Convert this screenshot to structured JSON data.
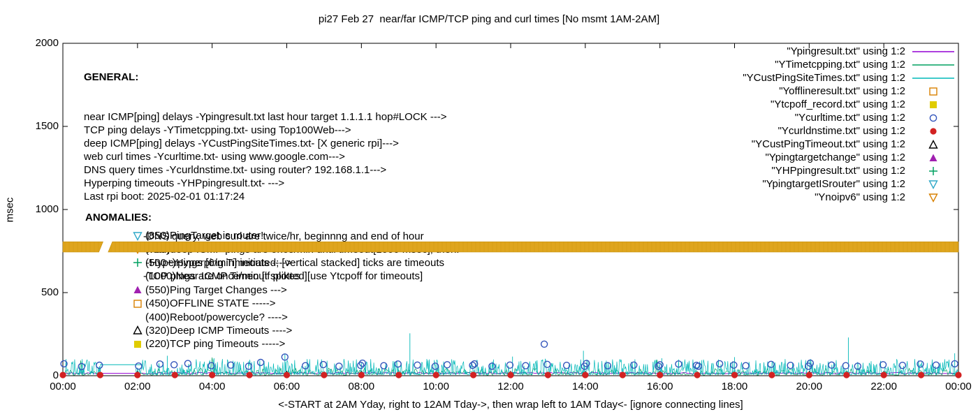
{
  "title": "pi27 Feb 27  near/far ICMP/TCP ping and curl times [No msmt 1AM-2AM]",
  "ylabel": "msec",
  "xlabel": "<-START at 2AM Yday, right to 12AM Tday->, then wrap left to 1AM Tday<- [ignore connecting lines]",
  "general": {
    "heading": "GENERAL:",
    "lines": [
      "near ICMP[ping] delays -Ypingresult.txt last hour target 1.1.1.1 hop#LOCK --->",
      "TCP ping delays -YTimetcpping.txt- using Top100Web--->",
      "deep ICMP[ping] delays -YCustPingSiteTimes.txt- [X generic rpi]--->",
      "web curl times -Ycurltime.txt- using www.google.com--->",
      "DNS query times -Ycurldnstime.txt- using router? 192.168.1.1--->",
      "Hyperping timeouts -YHPpingresult.txt- --->",
      "Last rpi boot: 2025-02-01 01:17:24"
    ],
    "notes": [
      "-DNS query, web curl are twice/hr, beginnng and end of hour",
      "-near,deep ICMP pings are once/min until timeout[1000 msec], then:",
      " -Hyperpings [6/min] initiated; [vertical stacked] ticks are timeouts",
      "-TCP pings are once/min [if plotted][use Ytcpoff for timeouts]"
    ]
  },
  "anomalies": {
    "heading": "ANOMALIES:",
    "items": [
      {
        "marker": "tri-down-open",
        "color": "#2FA8C8",
        "label": "(850)PingTarget is router!"
      },
      {
        "marker": "tri-down-open",
        "color": "#D88000",
        "label": "(735)"
      },
      {
        "marker": "plus",
        "color": "#00A060",
        "label": "(500+)Hyperping Timeouts ---->"
      },
      {
        "marker": "none",
        "color": "#000000",
        "label": "(1000)Near ICMP Timeout spikes"
      },
      {
        "marker": "tri-up-filled",
        "color": "#A020B0",
        "label": "(550)Ping Target Changes --->"
      },
      {
        "marker": "square-open",
        "color": "#D88000",
        "label": "(450)OFFLINE STATE ----->"
      },
      {
        "marker": "none",
        "color": "#000000",
        "label": "(400)Reboot/powercycle? ---->"
      },
      {
        "marker": "tri-up-open",
        "color": "#000000",
        "label": "(320)Deep ICMP Timeouts ---->"
      },
      {
        "marker": "square-filled",
        "color": "#E0CC00",
        "label": "(220)TCP ping Timeouts ----->"
      }
    ]
  },
  "legend": {
    "items": [
      {
        "label": "\"Ypingresult.txt\" using 1:2",
        "marker": "line",
        "color": "#9400D3"
      },
      {
        "label": "\"YTimetcpping.txt\" using 1:2",
        "marker": "line",
        "color": "#00A060"
      },
      {
        "label": "\"YCustPingSiteTimes.txt\" using 1:2",
        "marker": "line",
        "color": "#00B8B8"
      },
      {
        "label": "\"Yofflineresult.txt\" using 1:2",
        "marker": "square-open",
        "color": "#D88000"
      },
      {
        "label": "\"Ytcpoff_record.txt\" using 1:2",
        "marker": "square-filled",
        "color": "#E0CC00"
      },
      {
        "label": "\"Ycurltime.txt\" using 1:2",
        "marker": "circle-open",
        "color": "#3355BB"
      },
      {
        "label": "\"Ycurldnstime.txt\" using 1:2",
        "marker": "circle-filled",
        "color": "#D22222"
      },
      {
        "label": "\"YCustPingTimeout.txt\" using 1:2",
        "marker": "tri-up-open",
        "color": "#000000"
      },
      {
        "label": "\"Ypingtargetchange\" using 1:2",
        "marker": "tri-up-filled",
        "color": "#A020B0"
      },
      {
        "label": "\"YHPpingresult.txt\" using 1:2",
        "marker": "plus",
        "color": "#00A060"
      },
      {
        "label": "\"YpingtargetISrouter\" using 1:2",
        "marker": "tri-down-open",
        "color": "#2FA8C8"
      },
      {
        "label": "\"Ynoipv6\" using 1:2",
        "marker": "tri-down-open",
        "color": "#D88000"
      }
    ]
  },
  "chart_data": {
    "type": "line",
    "title": "pi27 Feb 27  near/far ICMP/TCP ping and curl times [No msmt 1AM-2AM]",
    "xlabel": "<-START at 2AM Yday, right to 12AM Tday->, then wrap left to 1AM Tday<- [ignore connecting lines]",
    "ylabel": "msec",
    "xlim": [
      0,
      24
    ],
    "ylim": [
      0,
      2000
    ],
    "yticks": [
      0,
      500,
      1000,
      1500,
      2000
    ],
    "xticks": {
      "positions": [
        0,
        2,
        4,
        6,
        8,
        10,
        12,
        14,
        16,
        18,
        20,
        22,
        24
      ],
      "labels": [
        "00:00",
        "02:00",
        "04:00",
        "06:00",
        "08:00",
        "10:00",
        "12:00",
        "14:00",
        "16:00",
        "18:00",
        "20:00",
        "22:00",
        "00:00"
      ]
    },
    "grid": false,
    "legend_position": "top-right",
    "seed": 27,
    "no_measurement_gap_hours": [
      1.03,
      1.95
    ],
    "series": [
      {
        "id": "Ypingresult-near-icmp",
        "type": "noise-line",
        "color": "#9400D3",
        "base": 11,
        "amp": 9,
        "pow": 1,
        "step": 0.06,
        "width": 0.9,
        "gap": [
          1.03,
          1.95
        ]
      },
      {
        "id": "YTimetcpping-tcp-ping",
        "type": "noise-line",
        "color": "#00A060",
        "base": 4,
        "amp": 42,
        "pow": 2.2,
        "step": 0.04,
        "width": 0.7,
        "gap": [
          1.03,
          1.95
        ]
      },
      {
        "id": "YCustPingSiteTimes-deep-icmp",
        "type": "noise-line",
        "color": "#00B8B8",
        "base": 6,
        "amp": 95,
        "pow": 2.6,
        "step": 0.0167,
        "width": 0.7,
        "gap": [
          1.03,
          1.95
        ]
      },
      {
        "id": "deep-icmp-tall-spikes",
        "type": "vlines",
        "color": "#00B8B8",
        "width": 0.9,
        "points": [
          [
            2.8,
            120
          ],
          [
            4.05,
            105
          ],
          [
            5.95,
            130
          ],
          [
            9.3,
            255
          ],
          [
            12.05,
            115
          ],
          [
            13.95,
            150
          ],
          [
            16.05,
            105
          ],
          [
            18.0,
            112
          ],
          [
            21.05,
            230
          ],
          [
            23.9,
            135
          ]
        ]
      },
      {
        "id": "gap-connector-lines",
        "type": "segments",
        "items": [
          {
            "color": "#00B8B8",
            "x1": 1.0,
            "y1": 66,
            "x2": 2.12,
            "y2": 66
          },
          {
            "color": "#9400D3",
            "x1": 1.03,
            "y1": 14,
            "x2": 1.95,
            "y2": 14
          }
        ]
      },
      {
        "id": "Ycurltime-web-curl",
        "type": "scatter",
        "marker": "circle-open",
        "color": "#3355BB",
        "r": 4.5,
        "points": [
          [
            0.03,
            72
          ],
          [
            0.5,
            55
          ],
          [
            0.98,
            63
          ],
          [
            2.03,
            58
          ],
          [
            2.6,
            70
          ],
          [
            2.98,
            66
          ],
          [
            3.35,
            73
          ],
          [
            3.98,
            60
          ],
          [
            4.5,
            64
          ],
          [
            4.98,
            57
          ],
          [
            5.3,
            80
          ],
          [
            5.95,
            112
          ],
          [
            6.5,
            60
          ],
          [
            6.98,
            67
          ],
          [
            7.4,
            57
          ],
          [
            7.98,
            62
          ],
          [
            8.03,
            75
          ],
          [
            8.6,
            60
          ],
          [
            8.98,
            70
          ],
          [
            9.5,
            64
          ],
          [
            9.98,
            57
          ],
          [
            10.3,
            66
          ],
          [
            10.98,
            62
          ],
          [
            11.03,
            71
          ],
          [
            11.5,
            57
          ],
          [
            11.98,
            64
          ],
          [
            12.4,
            60
          ],
          [
            12.9,
            190
          ],
          [
            12.98,
            68
          ],
          [
            13.5,
            62
          ],
          [
            13.98,
            57
          ],
          [
            14.03,
            73
          ],
          [
            14.6,
            60
          ],
          [
            15.3,
            64
          ],
          [
            15.96,
            57
          ],
          [
            16.0,
            66
          ],
          [
            16.5,
            70
          ],
          [
            16.98,
            62
          ],
          [
            17.03,
            57
          ],
          [
            17.6,
            72
          ],
          [
            17.98,
            64
          ],
          [
            18.3,
            60
          ],
          [
            18.98,
            68
          ],
          [
            19.5,
            62
          ],
          [
            19.98,
            57
          ],
          [
            20.03,
            75
          ],
          [
            20.6,
            64
          ],
          [
            20.98,
            60
          ],
          [
            21.3,
            57
          ],
          [
            21.98,
            66
          ],
          [
            22.5,
            62
          ],
          [
            22.98,
            70
          ],
          [
            23.4,
            64
          ],
          [
            23.9,
            72
          ]
        ]
      },
      {
        "id": "Ycurldnstime-dns",
        "type": "scatter",
        "marker": "circle-filled",
        "color": "#D22222",
        "r": 4.6,
        "points": [
          [
            0,
            4
          ],
          [
            1,
            4
          ],
          [
            2,
            4
          ],
          [
            3,
            4
          ],
          [
            4,
            4
          ],
          [
            5,
            4
          ],
          [
            6,
            4
          ],
          [
            7,
            4
          ],
          [
            8,
            4
          ],
          [
            9,
            4
          ],
          [
            10,
            4
          ],
          [
            11,
            4
          ],
          [
            12,
            4
          ],
          [
            13,
            4
          ],
          [
            14,
            4
          ],
          [
            15,
            4
          ],
          [
            16,
            4
          ],
          [
            17,
            4
          ],
          [
            18,
            4
          ],
          [
            19,
            4
          ],
          [
            20,
            4
          ],
          [
            21,
            4
          ],
          [
            22,
            4
          ],
          [
            23,
            4
          ],
          [
            24,
            4
          ]
        ]
      },
      {
        "id": "Ynoipv6-band",
        "type": "band",
        "color": "#DFA51E",
        "edge": "#C68F08",
        "y_center": 775,
        "half_height": 31,
        "segments": [
          [
            0,
            1.02
          ],
          [
            1.27,
            24
          ]
        ]
      }
    ]
  }
}
